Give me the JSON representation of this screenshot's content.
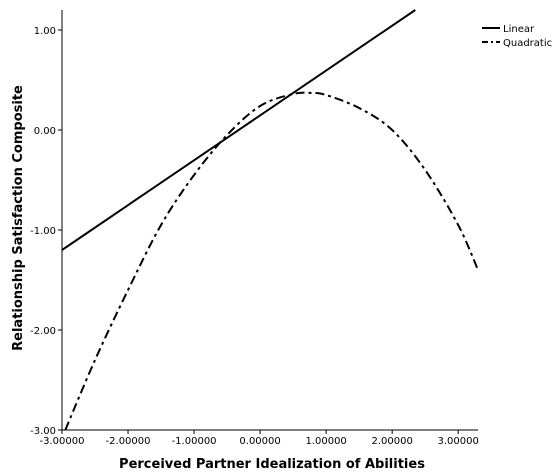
{
  "chart_data": {
    "type": "line",
    "title": "",
    "xlabel": "Perceived Partner Idealization of Abilities",
    "ylabel": "Relationship Satisfaction Composite",
    "xlim": [
      -3.0,
      3.3
    ],
    "ylim": [
      -3.0,
      1.2
    ],
    "x_ticks": [
      -3.0,
      -2.0,
      -1.0,
      0.0,
      1.0,
      2.0,
      3.0
    ],
    "x_tick_labels": [
      "-3.00000",
      "-2.00000",
      "-1.00000",
      "0.00000",
      "1.00000",
      "2.00000",
      "3.00000"
    ],
    "y_ticks": [
      -3.0,
      -2.0,
      -1.0,
      0.0,
      1.0
    ],
    "y_tick_labels": [
      "-3.00",
      "-2.00",
      "-1.00",
      "0.00",
      "1.00"
    ],
    "grid": false,
    "legend_position": "right",
    "series": [
      {
        "name": "Linear",
        "style": "solid",
        "color": "#000000",
        "x": [
          -3.0,
          2.35
        ],
        "y": [
          -1.2,
          1.2
        ]
      },
      {
        "name": "Quadratic",
        "style": "dash-dot",
        "color": "#000000",
        "x": [
          -2.95,
          -2.5,
          -2.0,
          -1.5,
          -1.0,
          -0.5,
          0.0,
          0.5,
          0.8,
          1.0,
          1.5,
          2.0,
          2.5,
          3.0,
          3.3
        ],
        "y": [
          -3.0,
          -2.3,
          -1.6,
          -0.95,
          -0.45,
          -0.05,
          0.24,
          0.36,
          0.37,
          0.35,
          0.22,
          0.0,
          -0.4,
          -0.95,
          -1.4
        ]
      }
    ]
  }
}
